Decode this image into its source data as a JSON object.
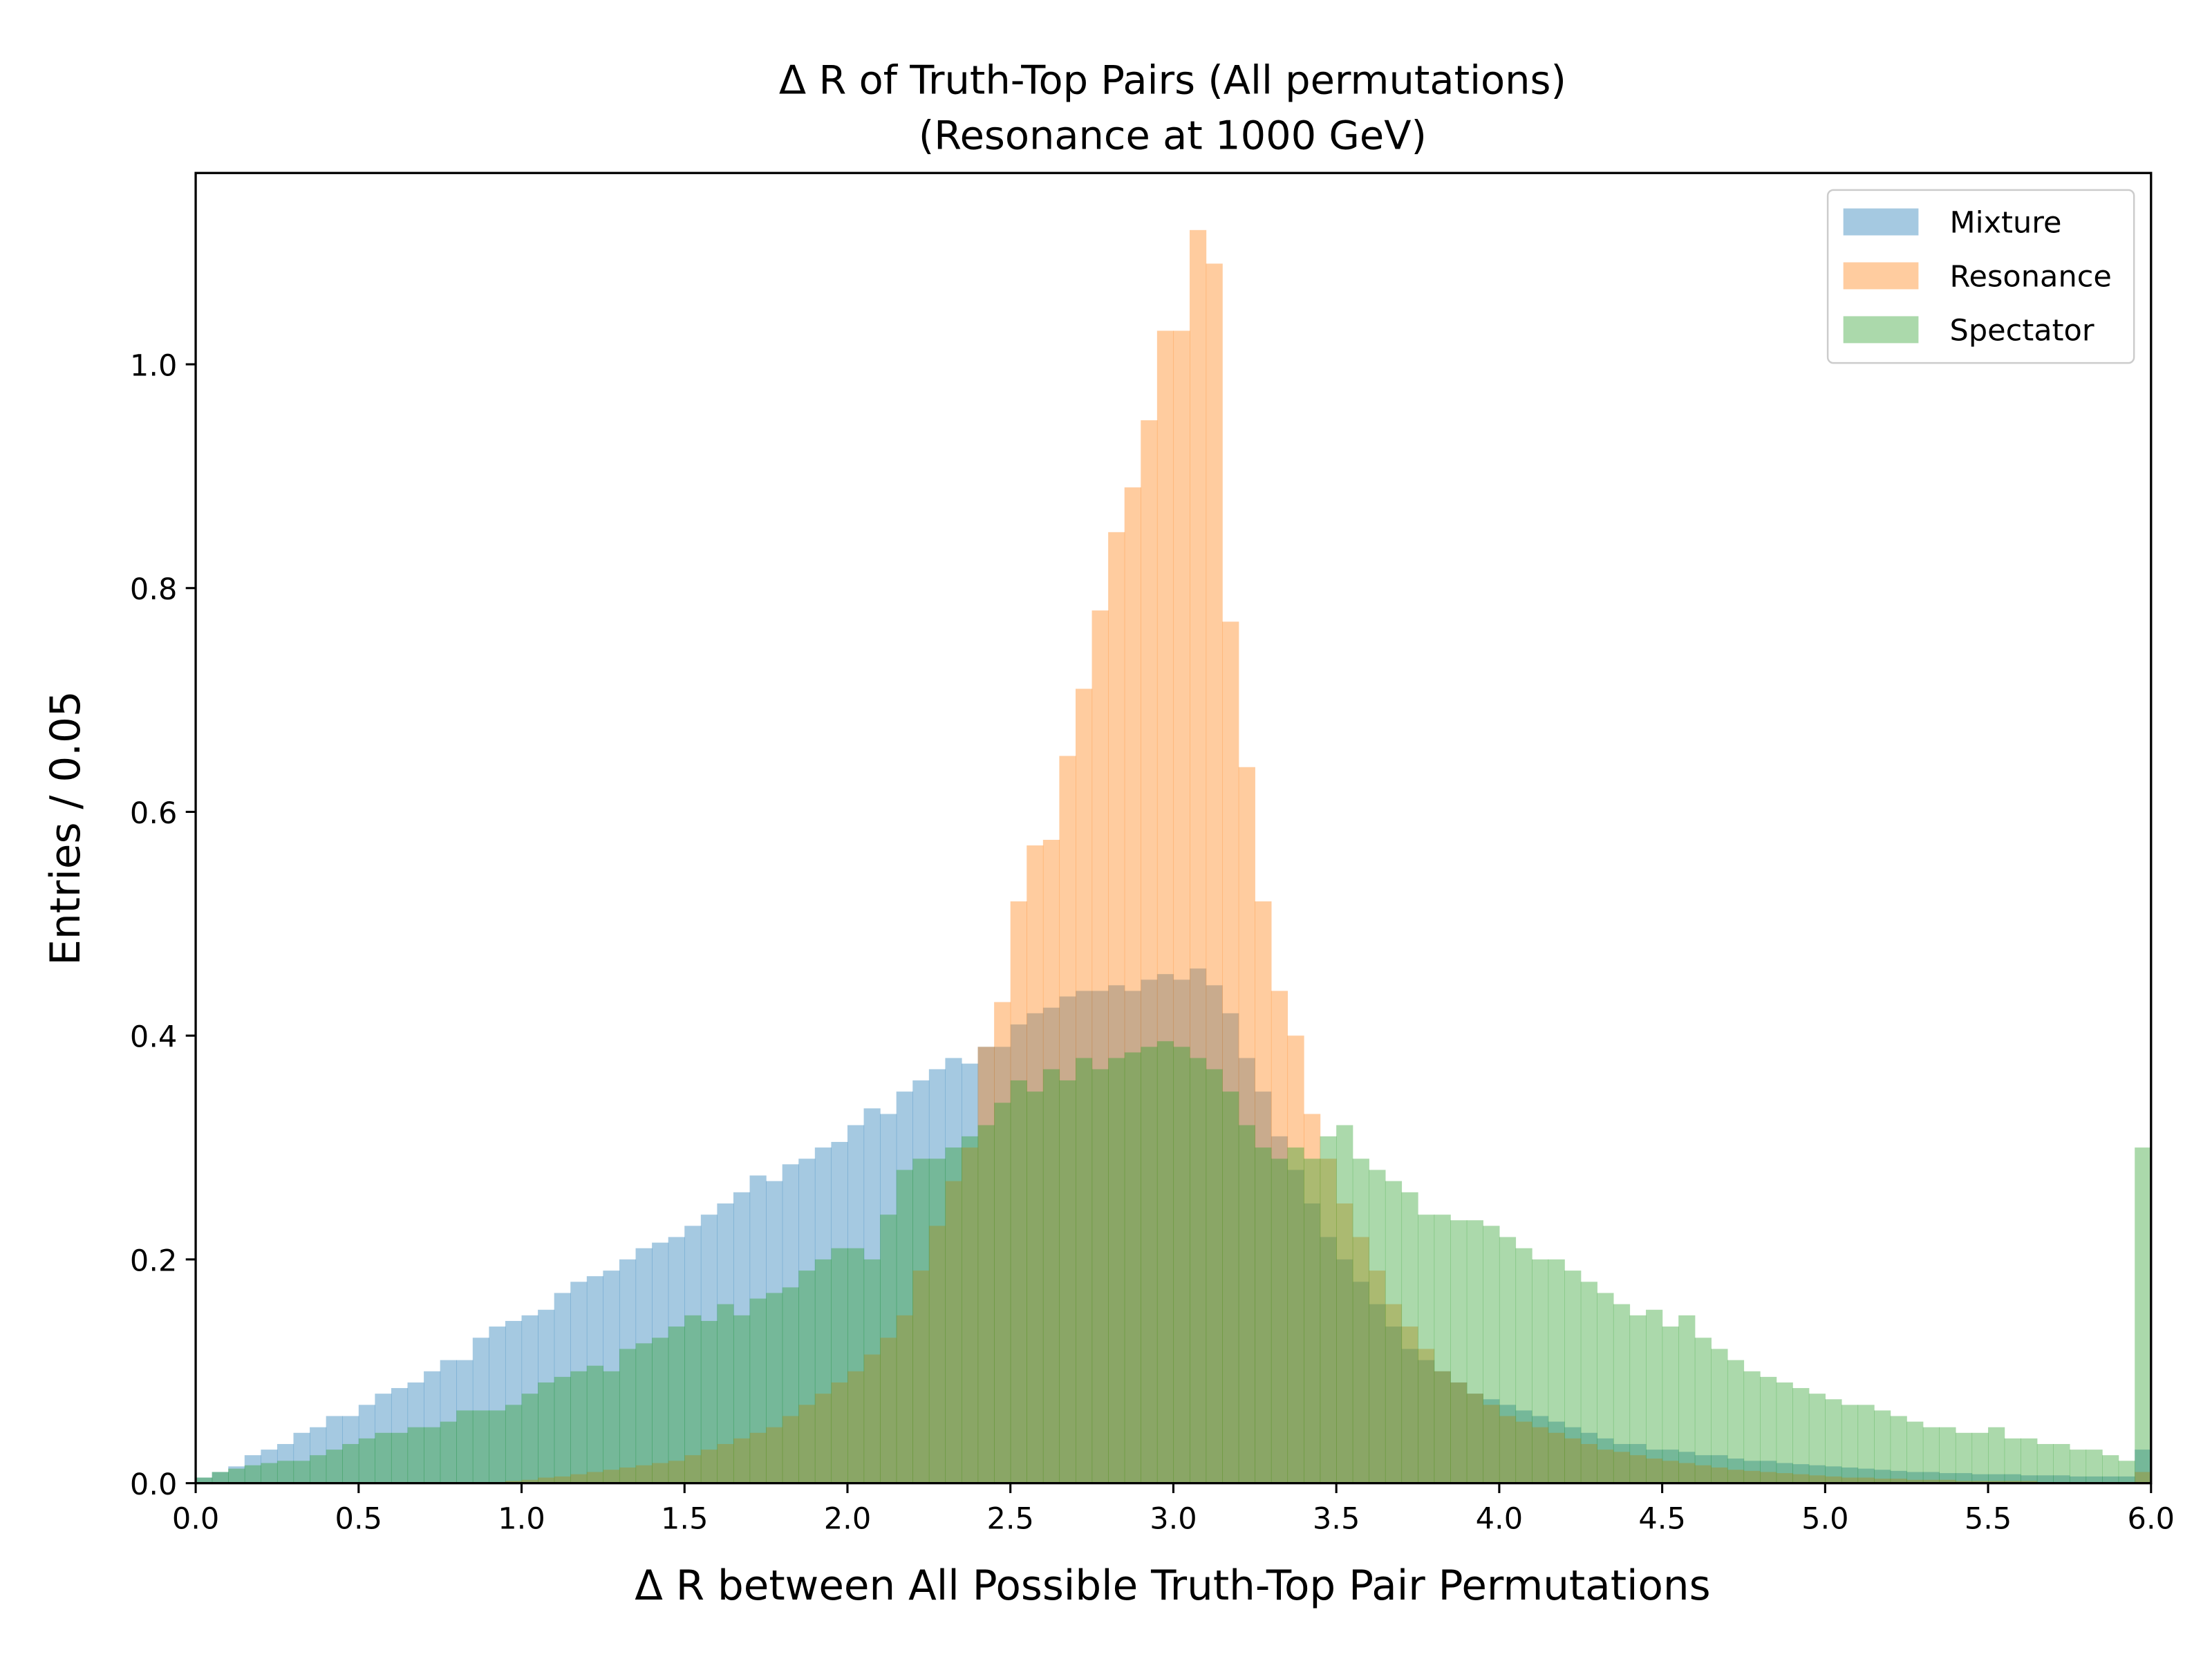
{
  "chart_data": {
    "type": "histogram",
    "title": "Δ R of Truth-Top Pairs (All permutations)",
    "subtitle": "(Resonance at 1000 GeV)",
    "x_label": "Δ R between All Possible Truth-Top Pair Permutations",
    "y_label": "Entries / 0.05",
    "legend": "upper right",
    "opacity": 0.4,
    "bins": [
      0,
      0.05,
      0.1,
      0.15,
      0.2,
      0.25,
      0.3,
      0.35,
      0.4,
      0.45,
      0.5,
      0.55,
      0.6,
      0.65,
      0.7,
      0.75,
      0.8,
      0.85,
      0.9,
      0.95,
      1,
      1.05,
      1.1,
      1.15,
      1.2,
      1.25,
      1.3,
      1.35,
      1.4,
      1.45,
      1.5,
      1.55,
      1.6,
      1.65,
      1.7,
      1.75,
      1.8,
      1.85,
      1.9,
      1.95,
      2,
      2.05,
      2.1,
      2.15,
      2.2,
      2.25,
      2.3,
      2.35,
      2.4,
      2.45,
      2.5,
      2.55,
      2.6,
      2.65,
      2.7,
      2.75,
      2.8,
      2.85,
      2.9,
      2.95,
      3,
      3.05,
      3.1,
      3.15,
      3.2,
      3.25,
      3.3,
      3.35,
      3.4,
      3.45,
      3.5,
      3.55,
      3.6,
      3.65,
      3.7,
      3.75,
      3.8,
      3.85,
      3.9,
      3.95,
      4,
      4.05,
      4.1,
      4.15,
      4.2,
      4.25,
      4.3,
      4.35,
      4.4,
      4.45,
      4.5,
      4.55,
      4.6,
      4.65,
      4.7,
      4.75,
      4.8,
      4.85,
      4.9,
      4.95,
      5,
      5.05,
      5.1,
      5.15,
      5.2,
      5.25,
      5.3,
      5.35,
      5.4,
      5.45,
      5.5,
      5.55,
      5.6,
      5.65,
      5.7,
      5.75,
      5.8,
      5.85,
      5.9,
      5.95,
      6
    ],
    "series": [
      {
        "name": "Mixture",
        "color": "#1f77b4",
        "values": [
          0.005,
          0.01,
          0.015,
          0.025,
          0.03,
          0.035,
          0.045,
          0.05,
          0.06,
          0.06,
          0.07,
          0.08,
          0.085,
          0.09,
          0.1,
          0.11,
          0.11,
          0.13,
          0.14,
          0.145,
          0.15,
          0.155,
          0.17,
          0.18,
          0.185,
          0.19,
          0.2,
          0.21,
          0.215,
          0.22,
          0.23,
          0.24,
          0.25,
          0.26,
          0.275,
          0.27,
          0.285,
          0.29,
          0.3,
          0.305,
          0.32,
          0.335,
          0.33,
          0.35,
          0.36,
          0.37,
          0.38,
          0.375,
          0.39,
          0.39,
          0.41,
          0.42,
          0.425,
          0.435,
          0.44,
          0.44,
          0.445,
          0.44,
          0.45,
          0.455,
          0.45,
          0.46,
          0.445,
          0.42,
          0.38,
          0.35,
          0.31,
          0.28,
          0.25,
          0.22,
          0.2,
          0.18,
          0.16,
          0.14,
          0.12,
          0.11,
          0.1,
          0.09,
          0.08,
          0.075,
          0.07,
          0.065,
          0.06,
          0.055,
          0.05,
          0.045,
          0.04,
          0.035,
          0.035,
          0.03,
          0.03,
          0.028,
          0.025,
          0.025,
          0.022,
          0.02,
          0.02,
          0.018,
          0.017,
          0.016,
          0.015,
          0.014,
          0.013,
          0.012,
          0.011,
          0.01,
          0.01,
          0.009,
          0.009,
          0.008,
          0.008,
          0.008,
          0.007,
          0.007,
          0.007,
          0.006,
          0.006,
          0.006,
          0.006,
          0.03
        ]
      },
      {
        "name": "Resonance",
        "color": "#ff7f0e",
        "values": [
          0,
          0,
          0,
          0,
          0,
          0,
          0,
          0,
          0,
          0,
          0,
          0,
          0,
          0,
          0,
          0,
          0,
          0,
          0.001,
          0.002,
          0.003,
          0.005,
          0.006,
          0.008,
          0.01,
          0.012,
          0.014,
          0.016,
          0.018,
          0.02,
          0.025,
          0.03,
          0.035,
          0.04,
          0.045,
          0.05,
          0.06,
          0.07,
          0.08,
          0.09,
          0.1,
          0.115,
          0.13,
          0.15,
          0.19,
          0.23,
          0.27,
          0.3,
          0.39,
          0.43,
          0.52,
          0.57,
          0.575,
          0.65,
          0.71,
          0.78,
          0.85,
          0.89,
          0.95,
          1.03,
          1.03,
          1.12,
          1.09,
          0.77,
          0.64,
          0.52,
          0.44,
          0.4,
          0.33,
          0.29,
          0.25,
          0.22,
          0.19,
          0.16,
          0.14,
          0.12,
          0.1,
          0.09,
          0.08,
          0.07,
          0.06,
          0.055,
          0.05,
          0.045,
          0.04,
          0.035,
          0.03,
          0.028,
          0.025,
          0.022,
          0.02,
          0.018,
          0.016,
          0.014,
          0.012,
          0.011,
          0.01,
          0.009,
          0.008,
          0.007,
          0.006,
          0.005,
          0.005,
          0.004,
          0.004,
          0.003,
          0.003,
          0.003,
          0.002,
          0.002,
          0.002,
          0.002,
          0.002,
          0.001,
          0.001,
          0.001,
          0.001,
          0.001,
          0.001,
          0.01
        ]
      },
      {
        "name": "Spectator",
        "color": "#2ca02c",
        "values": [
          0.005,
          0.01,
          0.013,
          0.016,
          0.018,
          0.02,
          0.02,
          0.025,
          0.03,
          0.035,
          0.04,
          0.045,
          0.045,
          0.05,
          0.05,
          0.055,
          0.065,
          0.065,
          0.065,
          0.07,
          0.08,
          0.09,
          0.095,
          0.1,
          0.105,
          0.1,
          0.12,
          0.125,
          0.13,
          0.14,
          0.15,
          0.145,
          0.16,
          0.15,
          0.165,
          0.17,
          0.175,
          0.19,
          0.2,
          0.21,
          0.21,
          0.2,
          0.24,
          0.28,
          0.29,
          0.29,
          0.3,
          0.31,
          0.32,
          0.34,
          0.36,
          0.35,
          0.37,
          0.36,
          0.38,
          0.37,
          0.38,
          0.385,
          0.39,
          0.395,
          0.39,
          0.38,
          0.37,
          0.35,
          0.32,
          0.3,
          0.29,
          0.3,
          0.29,
          0.31,
          0.32,
          0.29,
          0.28,
          0.27,
          0.26,
          0.24,
          0.24,
          0.235,
          0.235,
          0.23,
          0.22,
          0.21,
          0.2,
          0.2,
          0.19,
          0.18,
          0.17,
          0.16,
          0.15,
          0.155,
          0.14,
          0.15,
          0.13,
          0.12,
          0.11,
          0.1,
          0.095,
          0.09,
          0.085,
          0.08,
          0.075,
          0.07,
          0.07,
          0.065,
          0.06,
          0.055,
          0.05,
          0.05,
          0.045,
          0.045,
          0.05,
          0.04,
          0.04,
          0.035,
          0.035,
          0.03,
          0.03,
          0.025,
          0.02,
          0.3
        ]
      }
    ],
    "xlim": [
      0,
      6
    ],
    "xticks": [
      {
        "value": 0,
        "label": "0.0"
      },
      0.5,
      {
        "value": 1,
        "label": "1.0"
      },
      1.5,
      {
        "value": 2,
        "label": "2.0"
      },
      2.5,
      {
        "value": 3,
        "label": "3.0"
      },
      3.5,
      {
        "value": 4,
        "label": "4.0"
      },
      4.5,
      {
        "value": 5,
        "label": "5.0"
      },
      5.5,
      {
        "value": 6,
        "label": "6.0"
      }
    ],
    "ylim": [
      0,
      1.171
    ],
    "yticks": [
      {
        "value": 0,
        "label": "0.0"
      },
      0.2,
      0.4,
      0.6,
      0.8,
      {
        "value": 1,
        "label": "1.0"
      }
    ]
  }
}
